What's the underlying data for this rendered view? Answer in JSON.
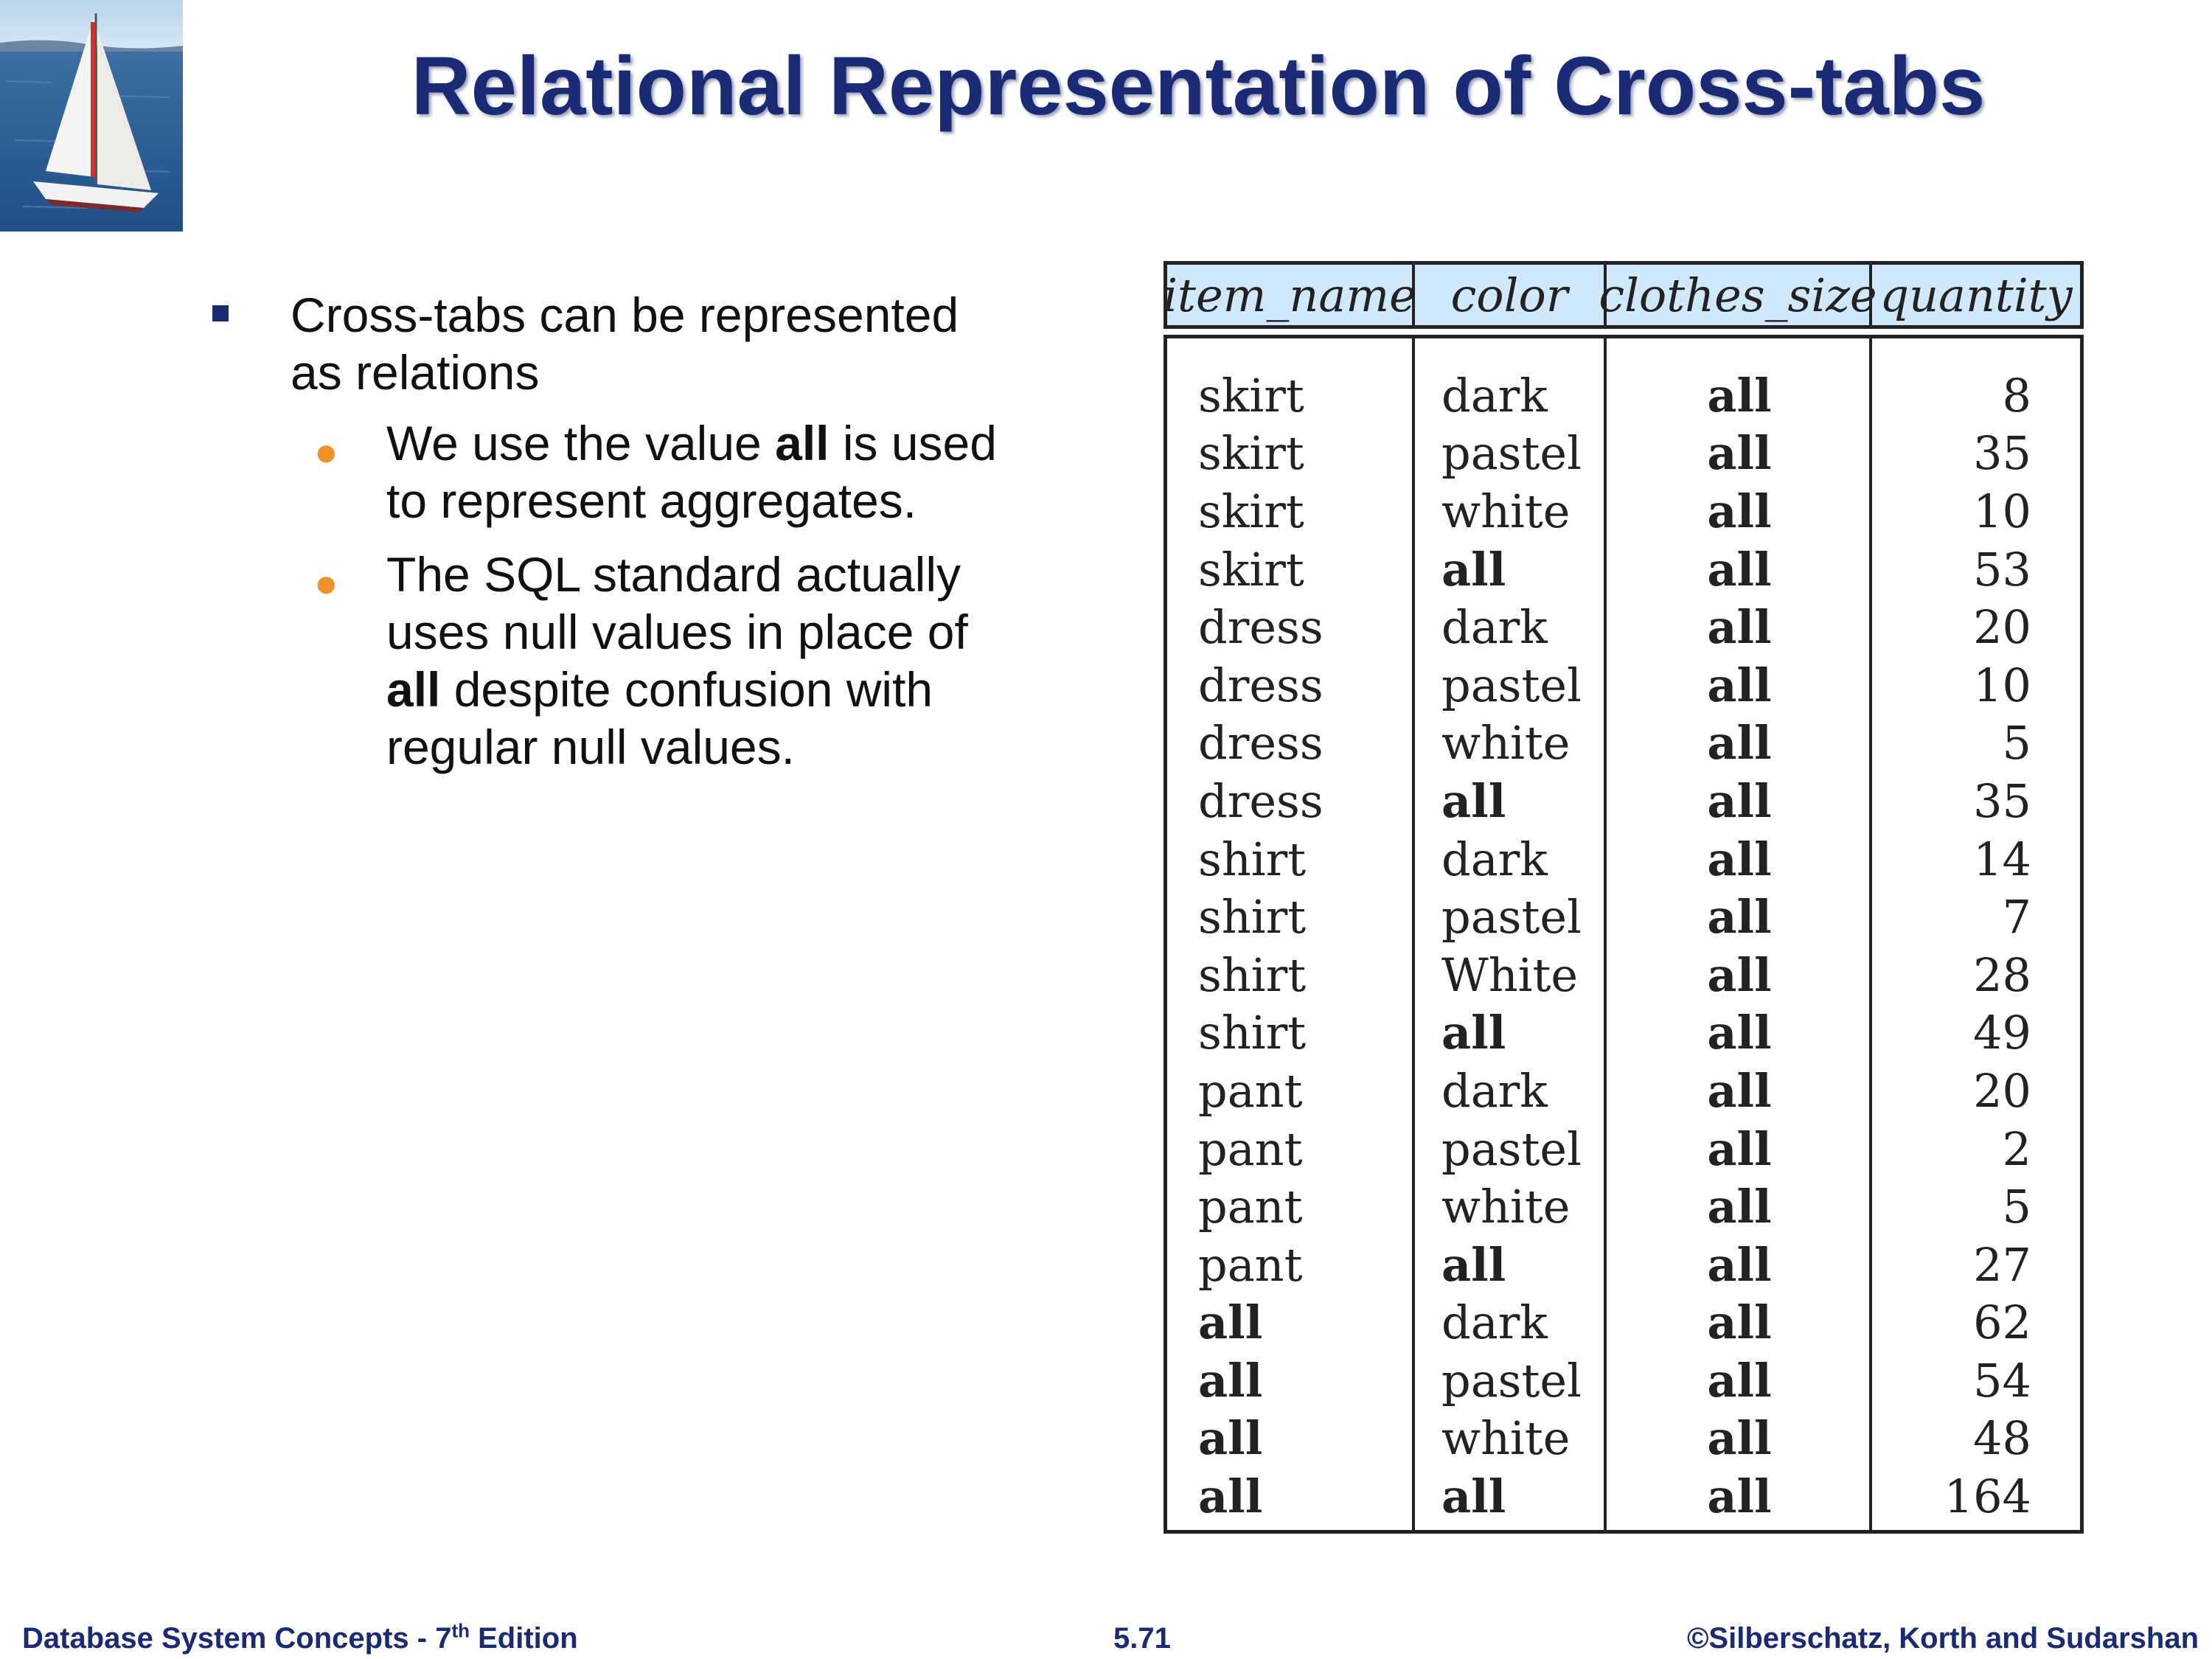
{
  "title": "Relational Representation of Cross-tabs",
  "bullets": {
    "level1": [
      "Cross-tabs can be represented",
      "as relations"
    ],
    "sub1": {
      "before": "We use the value ",
      "bold": "all",
      "after": " is used",
      "line2": "to represent aggregates."
    },
    "sub2": {
      "line1": "The SQL standard actually",
      "line2": "uses null values in place of",
      "bold": "all",
      "line3rest": " despite confusion with",
      "line4": "regular null values."
    }
  },
  "table": {
    "headers": [
      "item_name",
      "color",
      "clothes_size",
      "quantity"
    ],
    "rows": [
      [
        "skirt",
        "dark",
        "all",
        "8"
      ],
      [
        "skirt",
        "pastel",
        "all",
        "35"
      ],
      [
        "skirt",
        "white",
        "all",
        "10"
      ],
      [
        "skirt",
        "all",
        "all",
        "53"
      ],
      [
        "dress",
        "dark",
        "all",
        "20"
      ],
      [
        "dress",
        "pastel",
        "all",
        "10"
      ],
      [
        "dress",
        "white",
        "all",
        "5"
      ],
      [
        "dress",
        "all",
        "all",
        "35"
      ],
      [
        "shirt",
        "dark",
        "all",
        "14"
      ],
      [
        "shirt",
        "pastel",
        "all",
        "7"
      ],
      [
        "shirt",
        "White",
        "all",
        "28"
      ],
      [
        "shirt",
        "all",
        "all",
        "49"
      ],
      [
        "pant",
        "dark",
        "all",
        "20"
      ],
      [
        "pant",
        "pastel",
        "all",
        "2"
      ],
      [
        "pant",
        "white",
        "all",
        "5"
      ],
      [
        "pant",
        "all",
        "all",
        "27"
      ],
      [
        "all",
        "dark",
        "all",
        "62"
      ],
      [
        "all",
        "pastel",
        "all",
        "54"
      ],
      [
        "all",
        "white",
        "all",
        "48"
      ],
      [
        "all",
        "all",
        "all",
        "164"
      ]
    ]
  },
  "footer": {
    "left_prefix": "Database System Concepts - 7",
    "left_sup": "th",
    "left_suffix": " Edition",
    "page": "5.71",
    "right": "©Silberschatz, Korth and Sudarshan"
  },
  "colors": {
    "title": "#1b2a75",
    "header_bg": "#cfe8fb",
    "sub_bullet": "#f0902a"
  },
  "icons": {
    "logo": "sailboat-icon",
    "bullet": "square-bullet-icon",
    "sub_bullet": "round-bullet-icon"
  }
}
